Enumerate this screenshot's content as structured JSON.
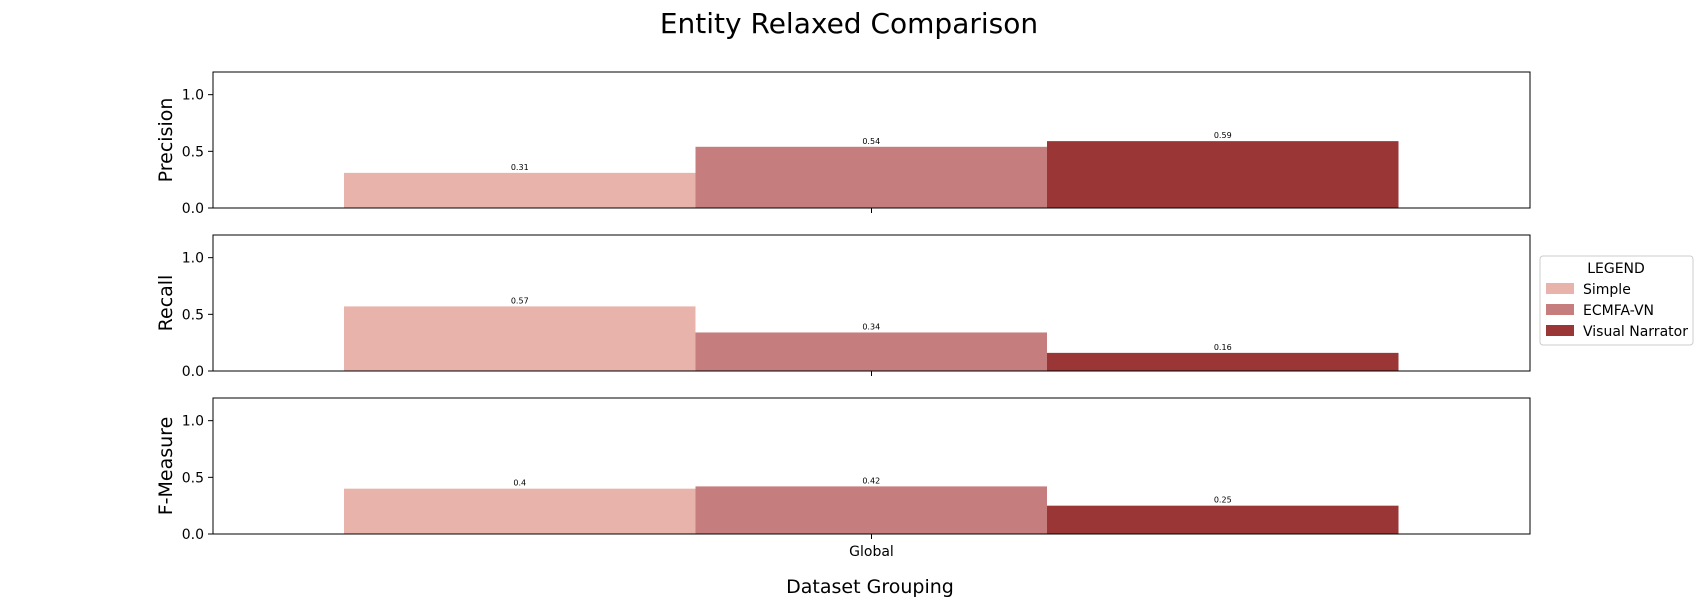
{
  "chart_data": {
    "type": "bar",
    "title": "Entity Relaxed Comparison",
    "xlabel": "Dataset Grouping",
    "categories": [
      "Global"
    ],
    "ylim": [
      0,
      1.2
    ],
    "yticks": [
      "0.0",
      "0.5",
      "1.0"
    ],
    "grid": false,
    "legend": {
      "title": "LEGEND",
      "placement": "right",
      "entries": [
        "Simple",
        "ECMFA-VN",
        "Visual Narrator"
      ]
    },
    "colors": {
      "Simple": "#e8b3ab",
      "ECMFA-VN": "#c67d7d",
      "Visual Narrator": "#9a3636"
    },
    "panels": [
      {
        "ylabel": "Precision",
        "series": [
          {
            "name": "Simple",
            "values": [
              0.31
            ],
            "label": "0.31"
          },
          {
            "name": "ECMFA-VN",
            "values": [
              0.54
            ],
            "label": "0.54"
          },
          {
            "name": "Visual Narrator",
            "values": [
              0.59
            ],
            "label": "0.59"
          }
        ]
      },
      {
        "ylabel": "Recall",
        "series": [
          {
            "name": "Simple",
            "values": [
              0.57
            ],
            "label": "0.57"
          },
          {
            "name": "ECMFA-VN",
            "values": [
              0.34
            ],
            "label": "0.34"
          },
          {
            "name": "Visual Narrator",
            "values": [
              0.16
            ],
            "label": "0.16"
          }
        ]
      },
      {
        "ylabel": "F-Measure",
        "series": [
          {
            "name": "Simple",
            "values": [
              0.4
            ],
            "label": "0.4"
          },
          {
            "name": "ECMFA-VN",
            "values": [
              0.42
            ],
            "label": "0.42"
          },
          {
            "name": "Visual Narrator",
            "values": [
              0.25
            ],
            "label": "0.25"
          }
        ]
      }
    ]
  }
}
